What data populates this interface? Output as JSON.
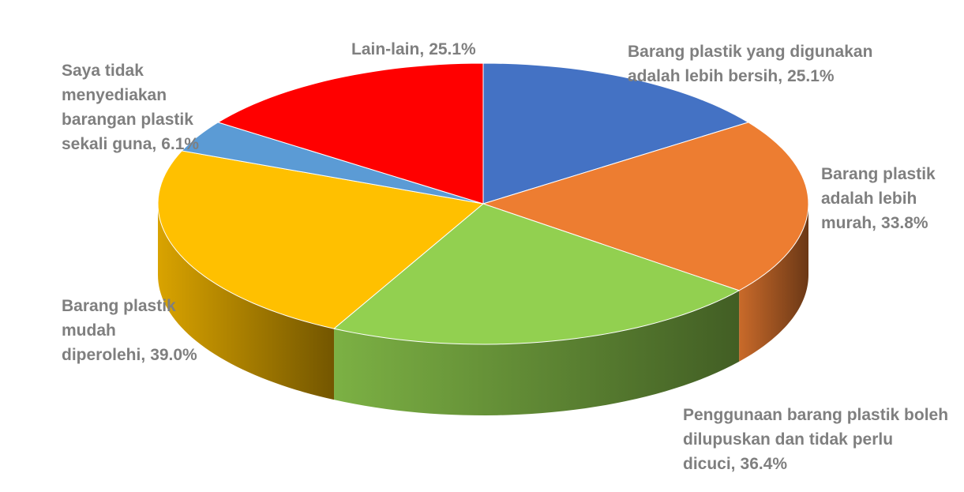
{
  "chart_data": {
    "type": "pie3d",
    "categories": [
      "Barang plastik yang digunakan adalah lebih bersih,",
      "Barang plastik adalah lebih murah,",
      "Penggunaan barang plastik boleh dilupuskan dan tidak perlu dicuci,",
      "Barang plastik mudah diperolehi,",
      "Saya tidak menyediakan barangan plastik sekali guna,",
      "Lain-lain,"
    ],
    "values": [
      25.1,
      33.8,
      36.4,
      39.0,
      6.1,
      25.1
    ],
    "value_labels": [
      "25.1%",
      "33.8%",
      "36.4%",
      "39.0%",
      "6.1%",
      "25.1%"
    ],
    "colors": [
      "#4472c4",
      "#ed7d31",
      "#92d050",
      "#ffc000",
      "#5b9bd5",
      "#ff0000"
    ]
  }
}
